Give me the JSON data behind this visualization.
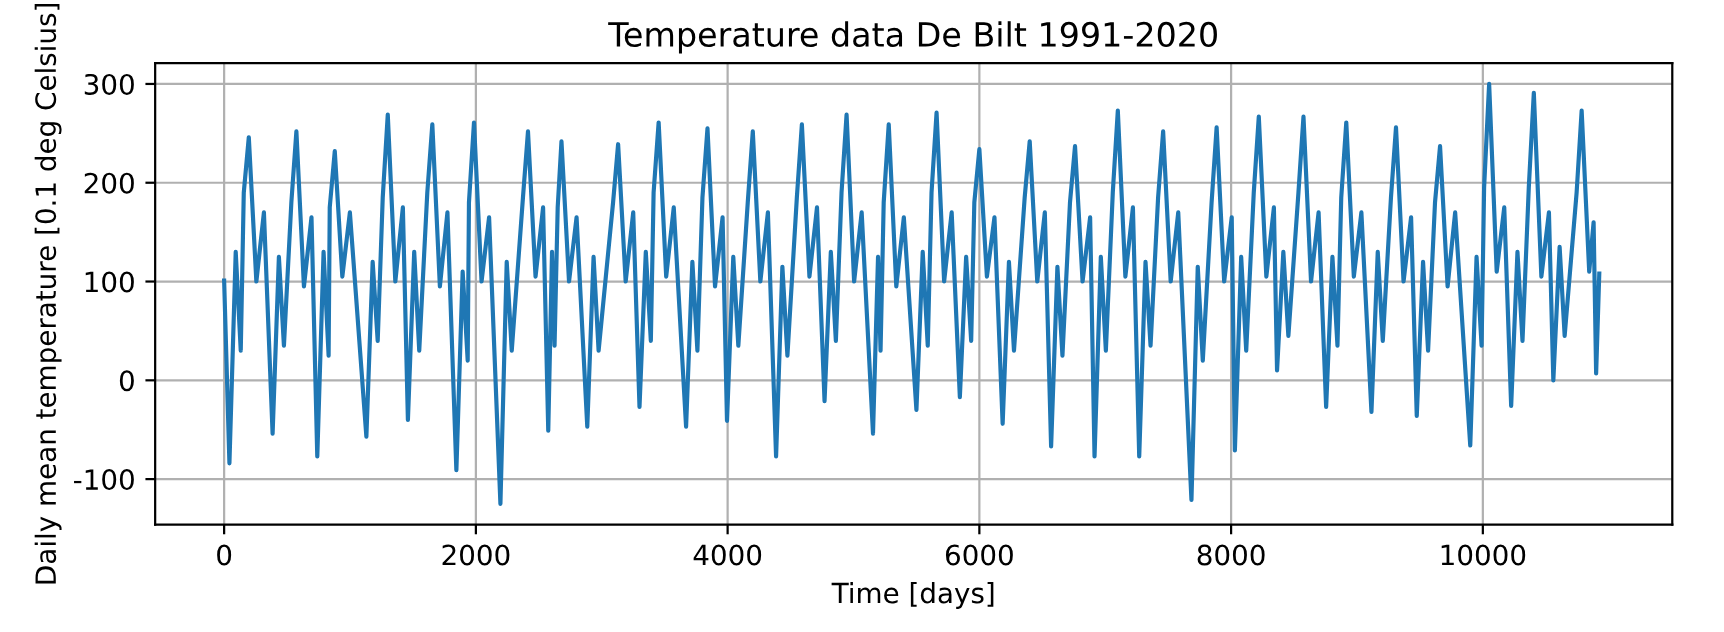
{
  "chart_data": {
    "type": "line",
    "title": "Temperature data De Bilt 1991-2020",
    "xlabel": "Time [days]",
    "ylabel": "Daily mean temperature [0.1 deg Celsius]",
    "xlim": [
      -548,
      11505
    ],
    "ylim": [
      -146,
      321
    ],
    "xticks": [
      0,
      2000,
      4000,
      6000,
      8000,
      10000
    ],
    "yticks": [
      -100,
      0,
      100,
      200,
      300
    ],
    "grid": true,
    "series": [
      {
        "color": "#1f77b4",
        "x": [
          0,
          42,
          92,
          132,
          156,
          196,
          256,
          316,
          385,
          435,
          475,
          534,
          574,
          634,
          694,
          740,
          790,
          830,
          839,
          879,
          939,
          999,
          1130,
          1180,
          1220,
          1260,
          1300,
          1360,
          1420,
          1460,
          1510,
          1550,
          1614,
          1654,
          1714,
          1774,
          1845,
          1895,
          1935,
          1945,
          1985,
          2045,
          2105,
          2195,
          2245,
          2285,
          2374,
          2414,
          2474,
          2534,
          2575,
          2605,
          2625,
          2650,
          2680,
          2740,
          2800,
          2885,
          2935,
          2975,
          3090,
          3130,
          3190,
          3250,
          3300,
          3350,
          3390,
          3412,
          3452,
          3512,
          3572,
          3670,
          3720,
          3760,
          3800,
          3840,
          3900,
          3960,
          3995,
          4045,
          4085,
          4160,
          4200,
          4260,
          4320,
          4385,
          4435,
          4475,
          4550,
          4590,
          4650,
          4710,
          4770,
          4820,
          4860,
          4905,
          4945,
          5005,
          5065,
          5155,
          5195,
          5215,
          5240,
          5280,
          5340,
          5400,
          5500,
          5550,
          5590,
          5620,
          5660,
          5720,
          5780,
          5845,
          5895,
          5935,
          5960,
          6000,
          6060,
          6120,
          6185,
          6235,
          6275,
          6360,
          6400,
          6460,
          6520,
          6570,
          6620,
          6660,
          6720,
          6760,
          6820,
          6880,
          6915,
          6965,
          7005,
          7060,
          7100,
          7160,
          7220,
          7270,
          7320,
          7360,
          7420,
          7460,
          7520,
          7580,
          7685,
          7735,
          7775,
          7845,
          7885,
          7945,
          8005,
          8030,
          8080,
          8120,
          8180,
          8220,
          8280,
          8340,
          8365,
          8415,
          8455,
          8535,
          8575,
          8635,
          8695,
          8755,
          8805,
          8845,
          8875,
          8915,
          8975,
          9035,
          9115,
          9165,
          9205,
          9270,
          9310,
          9370,
          9430,
          9475,
          9525,
          9565,
          9620,
          9660,
          9720,
          9780,
          9900,
          9950,
          9990,
          10010,
          10050,
          10110,
          10170,
          10225,
          10275,
          10315,
          10365,
          10405,
          10465,
          10525,
          10560,
          10610,
          10650,
          10745,
          10785,
          10845,
          10880,
          10900,
          10925
        ],
        "values": [
          101,
          -84,
          130,
          30,
          190,
          246,
          100,
          170,
          -54,
          125,
          35,
          180,
          252,
          95,
          165,
          -77,
          130,
          25,
          175,
          232,
          105,
          170,
          -57,
          120,
          40,
          185,
          269,
          100,
          175,
          -40,
          130,
          30,
          190,
          259,
          95,
          170,
          -91,
          110,
          20,
          180,
          261,
          100,
          165,
          -125,
          120,
          30,
          185,
          252,
          105,
          175,
          -51,
          130,
          35,
          175,
          242,
          100,
          165,
          -47,
          125,
          30,
          180,
          239,
          100,
          170,
          -27,
          130,
          40,
          190,
          261,
          105,
          175,
          -47,
          120,
          30,
          185,
          255,
          95,
          165,
          -41,
          125,
          35,
          180,
          252,
          100,
          170,
          -77,
          115,
          25,
          185,
          259,
          105,
          175,
          -21,
          130,
          40,
          190,
          269,
          100,
          170,
          -54,
          125,
          30,
          180,
          259,
          95,
          165,
          -30,
          130,
          35,
          190,
          271,
          100,
          170,
          -17,
          125,
          40,
          180,
          234,
          105,
          165,
          -44,
          120,
          30,
          185,
          242,
          100,
          170,
          -67,
          115,
          25,
          180,
          237,
          100,
          165,
          -77,
          125,
          30,
          190,
          273,
          105,
          175,
          -77,
          120,
          35,
          185,
          252,
          100,
          170,
          -121,
          115,
          20,
          180,
          256,
          100,
          165,
          -71,
          125,
          30,
          190,
          267,
          105,
          175,
          10,
          130,
          45,
          190,
          267,
          100,
          170,
          -27,
          125,
          35,
          185,
          261,
          105,
          170,
          -32,
          130,
          40,
          185,
          256,
          100,
          165,
          -36,
          120,
          30,
          180,
          237,
          95,
          170,
          -66,
          125,
          35,
          195,
          300,
          110,
          175,
          -26,
          130,
          40,
          195,
          291,
          105,
          170,
          0,
          135,
          45,
          190,
          273,
          110,
          160,
          7,
          108
        ]
      }
    ]
  }
}
